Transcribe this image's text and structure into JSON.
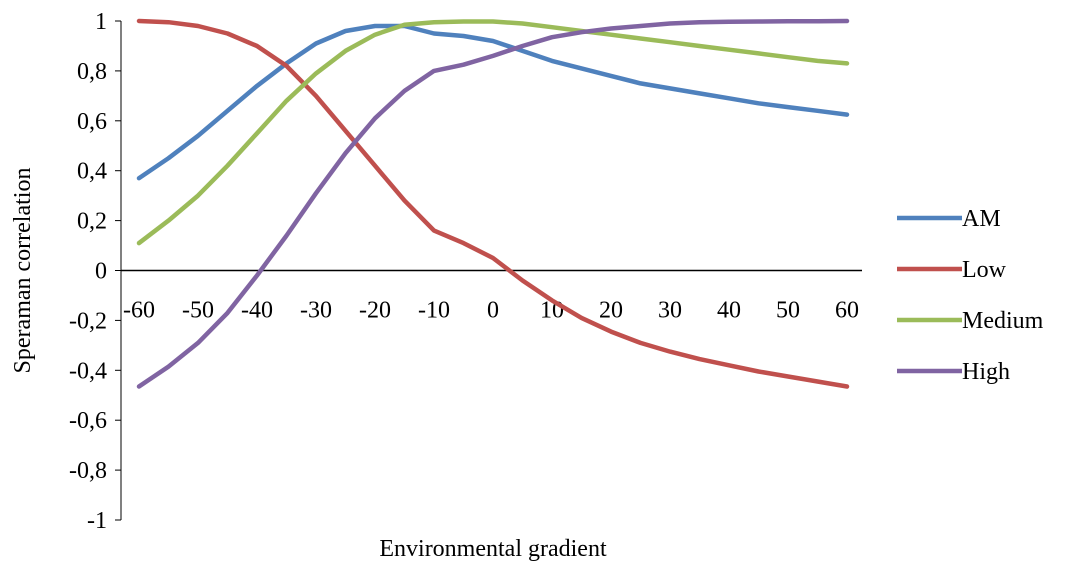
{
  "chart_data": {
    "type": "line",
    "title": "",
    "xlabel": "Environmental  gradient",
    "ylabel": "Speraman correlation",
    "x": [
      -60,
      -55,
      -50,
      -45,
      -40,
      -35,
      -30,
      -25,
      -20,
      -15,
      -10,
      -5,
      0,
      5,
      10,
      15,
      20,
      25,
      30,
      35,
      40,
      45,
      50,
      55,
      60
    ],
    "x_tick_labels": [
      "-60",
      "-50",
      "-40",
      "-30",
      "-20",
      "-10",
      "0",
      "10",
      "20",
      "30",
      "40",
      "50",
      "60"
    ],
    "y_tick_labels": [
      "1",
      "0,8",
      "0,6",
      "0,4",
      "0,2",
      "0",
      "-0,2",
      "-0,4",
      "-0,6",
      "-0,8",
      "-1"
    ],
    "xlim": [
      -60,
      60
    ],
    "ylim": [
      -1,
      1
    ],
    "grid": false,
    "legend_position": "right",
    "series": [
      {
        "name": "AM",
        "color": "#4f81bd",
        "values": [
          0.37,
          0.45,
          0.54,
          0.64,
          0.74,
          0.83,
          0.91,
          0.96,
          0.98,
          0.98,
          0.95,
          0.94,
          0.92,
          0.88,
          0.84,
          0.81,
          0.78,
          0.75,
          0.73,
          0.71,
          0.69,
          0.67,
          0.655,
          0.64,
          0.625
        ]
      },
      {
        "name": "Low",
        "color": "#c0504d",
        "values": [
          1.0,
          0.995,
          0.98,
          0.95,
          0.9,
          0.82,
          0.7,
          0.56,
          0.42,
          0.28,
          0.16,
          0.11,
          0.05,
          -0.04,
          -0.12,
          -0.19,
          -0.245,
          -0.29,
          -0.325,
          -0.355,
          -0.38,
          -0.405,
          -0.425,
          -0.445,
          -0.465
        ]
      },
      {
        "name": "Medium",
        "color": "#9bbb59",
        "values": [
          0.11,
          0.2,
          0.3,
          0.42,
          0.55,
          0.68,
          0.79,
          0.88,
          0.945,
          0.985,
          0.995,
          0.998,
          0.998,
          0.99,
          0.975,
          0.96,
          0.945,
          0.93,
          0.915,
          0.9,
          0.885,
          0.87,
          0.855,
          0.84,
          0.83
        ]
      },
      {
        "name": "High",
        "color": "#8064a2",
        "values": [
          -0.465,
          -0.385,
          -0.29,
          -0.17,
          -0.02,
          0.14,
          0.31,
          0.47,
          0.61,
          0.72,
          0.8,
          0.825,
          0.86,
          0.9,
          0.935,
          0.955,
          0.97,
          0.98,
          0.99,
          0.995,
          0.997,
          0.998,
          0.999,
          0.999,
          1.0
        ]
      }
    ]
  }
}
